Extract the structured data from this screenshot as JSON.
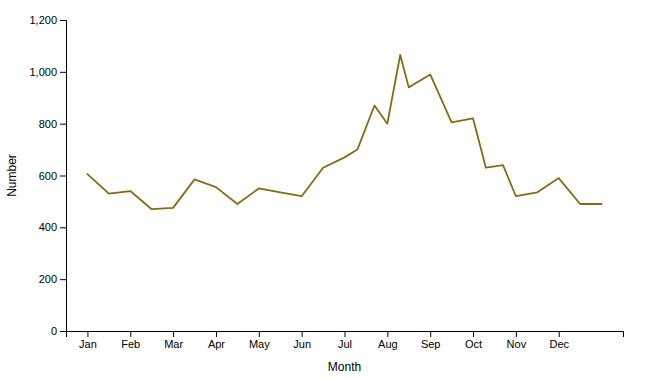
{
  "chart_data": {
    "type": "line",
    "x": [
      1,
      1.5,
      2,
      2.5,
      3,
      3.5,
      4,
      4.5,
      5,
      5.5,
      6,
      6.5,
      7,
      7.3,
      7.7,
      8,
      8.3,
      8.5,
      8.7,
      9,
      9.5,
      10,
      10.3,
      10.7,
      11,
      11.5,
      12,
      12.5,
      13
    ],
    "values": [
      605,
      530,
      540,
      470,
      475,
      585,
      555,
      490,
      550,
      535,
      520,
      630,
      670,
      700,
      870,
      800,
      1065,
      940,
      960,
      990,
      805,
      820,
      630,
      640,
      520,
      535,
      590,
      490,
      490
    ],
    "color": "#8B6914",
    "xlabel": "Month",
    "ylabel": "Number",
    "xlim": [
      0.5,
      13.5
    ],
    "xticks": [
      {
        "value": 1,
        "label": "Jan"
      },
      {
        "value": 2,
        "label": "Feb"
      },
      {
        "value": 3,
        "label": "Mar"
      },
      {
        "value": 4,
        "label": "Apr"
      },
      {
        "value": 5,
        "label": "May"
      },
      {
        "value": 6,
        "label": "Jun"
      },
      {
        "value": 7,
        "label": "Jul"
      },
      {
        "value": 8,
        "label": "Aug"
      },
      {
        "value": 9,
        "label": "Sep"
      },
      {
        "value": 10,
        "label": "Oct"
      },
      {
        "value": 11,
        "label": "Nov"
      },
      {
        "value": 12,
        "label": "Dec"
      }
    ],
    "ylim": [
      0,
      1200
    ],
    "yticks": [
      0,
      200,
      400,
      600,
      800,
      {
        "value": 1000,
        "label": "1,000"
      },
      {
        "value": 1200,
        "label": "1,200"
      }
    ]
  }
}
